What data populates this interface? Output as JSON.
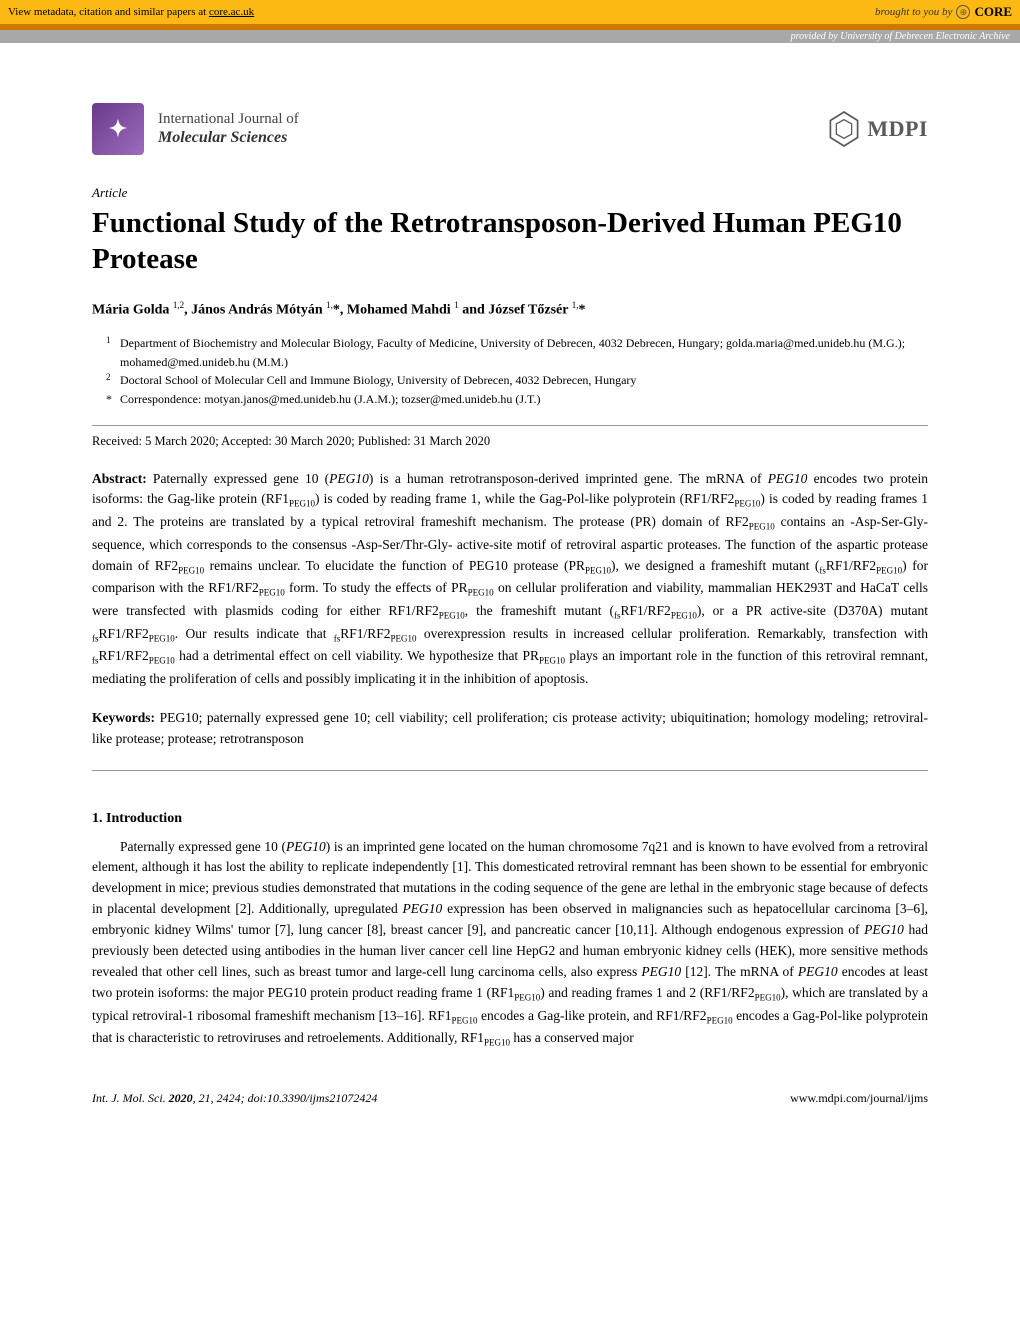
{
  "banner": {
    "left_prefix": "View metadata, citation and similar papers at ",
    "left_link": "core.ac.uk",
    "right_prefix": "brought to you by",
    "core_label": "CORE"
  },
  "provider": {
    "prefix": "provided by ",
    "name": "University of Debrecen Electronic Archive"
  },
  "journal": {
    "line1": "International Journal of",
    "line2": "Molecular Sciences"
  },
  "publisher": "MDPI",
  "article_label": "Article",
  "title": "Functional Study of the Retrotransposon-Derived Human PEG10 Protease",
  "authors_html": "Mária Golda <sup>1,2</sup>, János András Mótyán <sup>1,</sup>*, Mohamed Mahdi <sup>1</sup> and József Tőzsér <sup>1,</sup>*",
  "affiliations": [
    {
      "marker": "1",
      "text": "Department of Biochemistry and Molecular Biology, Faculty of Medicine, University of Debrecen, 4032 Debrecen, Hungary; golda.maria@med.unideb.hu (M.G.); mohamed@med.unideb.hu (M.M.)"
    },
    {
      "marker": "2",
      "text": "Doctoral School of Molecular Cell and Immune Biology, University of Debrecen, 4032 Debrecen, Hungary"
    },
    {
      "marker": "*",
      "text": "Correspondence: motyan.janos@med.unideb.hu (J.A.M.); tozser@med.unideb.hu (J.T.)"
    }
  ],
  "dates": "Received: 5 March 2020; Accepted: 30 March 2020; Published: 31 March 2020",
  "abstract": {
    "label": "Abstract:",
    "text": " Paternally expressed gene 10 (<i>PEG10</i>) is a human retrotransposon-derived imprinted gene. The mRNA of <i>PEG10</i> encodes two protein isoforms: the Gag-like protein (RF1<span class='sub'>PEG10</span>) is coded by reading frame 1, while the Gag-Pol-like polyprotein (RF1/RF2<span class='sub'>PEG10</span>) is coded by reading frames 1 and 2. The proteins are translated by a typical retroviral frameshift mechanism. The protease (PR) domain of RF2<span class='sub'>PEG10</span> contains an -Asp-Ser-Gly- sequence, which corresponds to the consensus -Asp-Ser/Thr-Gly- active-site motif of retroviral aspartic proteases. The function of the aspartic protease domain of RF2<span class='sub'>PEG10</span> remains unclear. To elucidate the function of PEG10 protease (PR<span class='sub'>PEG10</span>), we designed a frameshift mutant (<span class='sub'>fs</span>RF1/RF2<span class='sub'>PEG10</span>) for comparison with the RF1/RF2<span class='sub'>PEG10</span> form. To study the effects of PR<span class='sub'>PEG10</span> on cellular proliferation and viability, mammalian HEK293T and HaCaT cells were transfected with plasmids coding for either RF1/RF2<span class='sub'>PEG10</span>, the frameshift mutant (<span class='sub'>fs</span>RF1/RF2<span class='sub'>PEG10</span>), or a PR active-site (D370A) mutant <span class='sub'>fs</span>RF1/RF2<span class='sub'>PEG10</span>. Our results indicate that <span class='sub'>fs</span>RF1/RF2<span class='sub'>PEG10</span> overexpression results in increased cellular proliferation. Remarkably, transfection with <span class='sub'>fs</span>RF1/RF2<span class='sub'>PEG10</span> had a detrimental effect on cell viability. We hypothesize that PR<span class='sub'>PEG10</span> plays an important role in the function of this retroviral remnant, mediating the proliferation of cells and possibly implicating it in the inhibition of apoptosis."
  },
  "keywords": {
    "label": "Keywords:",
    "text": " PEG10; paternally expressed gene 10; cell viability; cell proliferation; cis protease activity; ubiquitination; homology modeling; retroviral-like protease; protease; retrotransposon"
  },
  "section1": {
    "heading": "1. Introduction",
    "para1": "Paternally expressed gene 10 (<i>PEG10</i>) is an imprinted gene located on the human chromosome 7q21 and is known to have evolved from a retroviral element, although it has lost the ability to replicate independently [1]. This domesticated retroviral remnant has been shown to be essential for embryonic development in mice; previous studies demonstrated that mutations in the coding sequence of the gene are lethal in the embryonic stage because of defects in placental development [2]. Additionally, upregulated <i>PEG10</i> expression has been observed in malignancies such as hepatocellular carcinoma [3–6], embryonic kidney Wilms' tumor [7], lung cancer [8], breast cancer [9], and pancreatic cancer [10,11]. Although endogenous expression of <i>PEG10</i> had previously been detected using antibodies in the human liver cancer cell line HepG2 and human embryonic kidney cells (HEK), more sensitive methods revealed that other cell lines, such as breast tumor and large-cell lung carcinoma cells, also express <i>PEG10</i> [12]. The mRNA of <i>PEG10</i> encodes at least two protein isoforms: the major PEG10 protein product reading frame 1 (RF1<span class='sub'>PEG10</span>) and reading frames 1 and 2 (RF1/RF2<span class='sub'>PEG10</span>), which are translated by a typical retroviral-1 ribosomal frameshift mechanism [13–16]. RF1<span class='sub'>PEG10</span> encodes a Gag-like protein, and RF1/RF2<span class='sub'>PEG10</span> encodes a Gag-Pol-like polyprotein that is characteristic to retroviruses and retroelements. Additionally, RF1<span class='sub'>PEG10</span> has a conserved major"
  },
  "footer": {
    "left_html": "<i>Int. J. Mol. Sci.</i> <b>2020</b>, <i>21</i>, 2424; doi:10.3390/ijms21072424",
    "right": "www.mdpi.com/journal/ijms"
  },
  "colors": {
    "banner_bg": "#fdb913",
    "orange_bar": "#cf7800",
    "gray_bar": "#a8a8a8",
    "journal_icon": "#6a3a8a"
  }
}
